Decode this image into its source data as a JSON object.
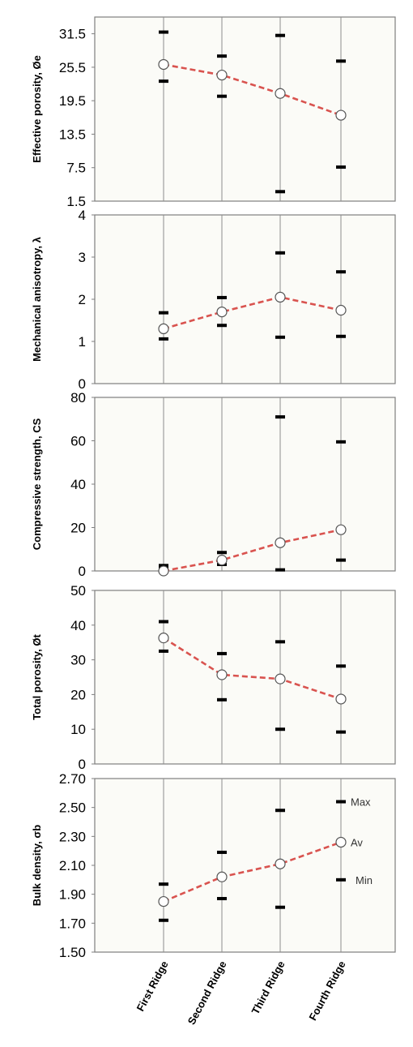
{
  "chart_data": [
    {
      "type": "scatter",
      "ylabel": "Effective porosity, Øe",
      "ylim": [
        1.5,
        34.5
      ],
      "yticks": [
        "1.5",
        "7.5",
        "13.5",
        "19.5",
        "25.5",
        "31.5"
      ],
      "categories": [
        "First Ridge",
        "Second Ridge",
        "Third Ridge",
        "Fourth Ridge"
      ],
      "series": [
        {
          "name": "Max",
          "values": [
            31.8,
            27.5,
            31.2,
            26.6
          ]
        },
        {
          "name": "Av",
          "values": [
            26.0,
            24.1,
            20.8,
            16.9
          ]
        },
        {
          "name": "Min",
          "values": [
            23.0,
            20.3,
            3.2,
            7.6
          ]
        }
      ],
      "grid": false
    },
    {
      "type": "scatter",
      "ylabel": "Mechanical anisotropy, λ",
      "ylim": [
        0,
        4
      ],
      "yticks": [
        "0",
        "1",
        "2",
        "3",
        "4"
      ],
      "categories": [
        "First Ridge",
        "Second Ridge",
        "Third Ridge",
        "Fourth Ridge"
      ],
      "series": [
        {
          "name": "Max",
          "values": [
            1.68,
            2.04,
            3.1,
            2.65
          ]
        },
        {
          "name": "Av",
          "values": [
            1.3,
            1.7,
            2.05,
            1.74
          ]
        },
        {
          "name": "Min",
          "values": [
            1.06,
            1.38,
            1.1,
            1.12
          ]
        }
      ],
      "grid": false
    },
    {
      "type": "scatter",
      "ylabel": "Compressive strength, CS",
      "ylim": [
        0,
        80
      ],
      "yticks": [
        "0",
        "20",
        "40",
        "60",
        "80"
      ],
      "categories": [
        "First Ridge",
        "Second Ridge",
        "Third Ridge",
        "Fourth Ridge"
      ],
      "series": [
        {
          "name": "Max",
          "values": [
            2.5,
            8.5,
            71,
            59.5
          ]
        },
        {
          "name": "Av",
          "values": [
            0,
            5,
            13,
            19
          ]
        },
        {
          "name": "Min",
          "values": [
            1.2,
            3,
            0.5,
            5
          ]
        }
      ],
      "grid": false
    },
    {
      "type": "scatter",
      "ylabel": "Total porosity, Øt",
      "ylim": [
        0,
        50
      ],
      "yticks": [
        "0",
        "10",
        "20",
        "30",
        "40",
        "50"
      ],
      "categories": [
        "First Ridge",
        "Second Ridge",
        "Third Ridge",
        "Fourth Ridge"
      ],
      "series": [
        {
          "name": "Max",
          "values": [
            41,
            31.8,
            35.2,
            28.2
          ]
        },
        {
          "name": "Av",
          "values": [
            36.3,
            25.7,
            24.5,
            18.7
          ]
        },
        {
          "name": "Min",
          "values": [
            32.5,
            18.5,
            10,
            9.2
          ]
        }
      ],
      "grid": false
    },
    {
      "type": "scatter",
      "ylabel": "Bulk density, σb",
      "ylim": [
        1.5,
        2.7
      ],
      "yticks": [
        "1.50",
        "1.70",
        "1.90",
        "2.10",
        "2.30",
        "2.50",
        "2.70"
      ],
      "categories": [
        "First Ridge",
        "Second Ridge",
        "Third Ridge",
        "Fourth Ridge"
      ],
      "series": [
        {
          "name": "Max",
          "values": [
            1.97,
            2.19,
            2.48,
            2.54
          ]
        },
        {
          "name": "Av",
          "values": [
            1.85,
            2.02,
            2.11,
            2.26
          ]
        },
        {
          "name": "Min",
          "values": [
            1.72,
            1.87,
            1.81,
            2.0
          ]
        }
      ],
      "legend_placement": "right",
      "grid": false
    }
  ],
  "legend": [
    "Max",
    "Av",
    "Min"
  ],
  "colors": {
    "avg_line": "#d9534f",
    "frame": "#7f7f7f",
    "marker": "#000000",
    "plot_bg": "#fbfbf7"
  }
}
